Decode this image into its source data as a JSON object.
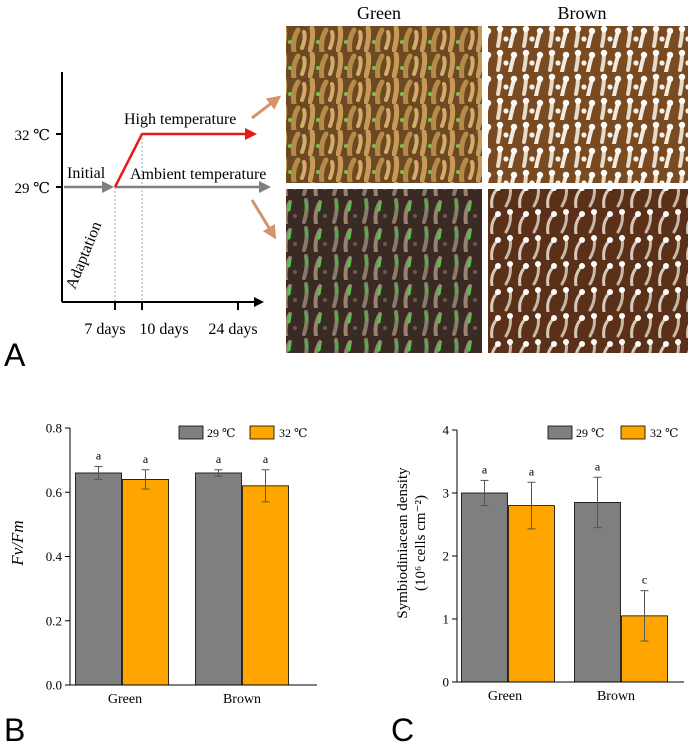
{
  "panels": {
    "a_letter": "A",
    "b_letter": "B",
    "c_letter": "C"
  },
  "timeline": {
    "temp_high": "32 ℃",
    "temp_ambient": "29 ℃",
    "label_initial": "Initial",
    "label_high": "High temperature",
    "label_ambient": "Ambient temperature",
    "label_adaptation": "Adaptation",
    "ticks": [
      "7 days",
      "10 days",
      "24 days"
    ]
  },
  "photos": {
    "col_green": "Green",
    "col_brown": "Brown"
  },
  "colors": {
    "gray": "#7f7f7f",
    "orange": "#ffa500",
    "red": "#e8191a",
    "arrow": "#d4956a"
  },
  "chart_data": [
    {
      "type": "bar",
      "categories": [
        "Green",
        "Brown"
      ],
      "series": [
        {
          "name": "29 ℃",
          "values": [
            0.66,
            0.66
          ],
          "errors": [
            0.02,
            0.01
          ],
          "letters": [
            "a",
            "a"
          ]
        },
        {
          "name": "32 ℃",
          "values": [
            0.64,
            0.62
          ],
          "errors": [
            0.03,
            0.05
          ],
          "letters": [
            "a",
            "a"
          ]
        }
      ],
      "ylabel": "Fv/Fm",
      "ylim": [
        0,
        0.8
      ],
      "yticks": [
        "0.0",
        "0.2",
        "0.4",
        "0.6",
        "0.8"
      ],
      "legend": "top-right"
    },
    {
      "type": "bar",
      "categories": [
        "Green",
        "Brown"
      ],
      "series": [
        {
          "name": "29 ℃",
          "values": [
            3.0,
            2.85
          ],
          "errors": [
            0.2,
            0.4
          ],
          "letters": [
            "a",
            "a"
          ]
        },
        {
          "name": "32 ℃",
          "values": [
            2.8,
            1.05
          ],
          "errors": [
            0.37,
            0.4
          ],
          "letters": [
            "a",
            "c"
          ]
        }
      ],
      "ylabel": "Symbiodiniacean density",
      "ylabel2": "(10⁶ cells cm⁻²)",
      "ylim": [
        0,
        4
      ],
      "yticks": [
        "0",
        "1",
        "2",
        "3",
        "4"
      ],
      "legend": "top-right"
    }
  ]
}
